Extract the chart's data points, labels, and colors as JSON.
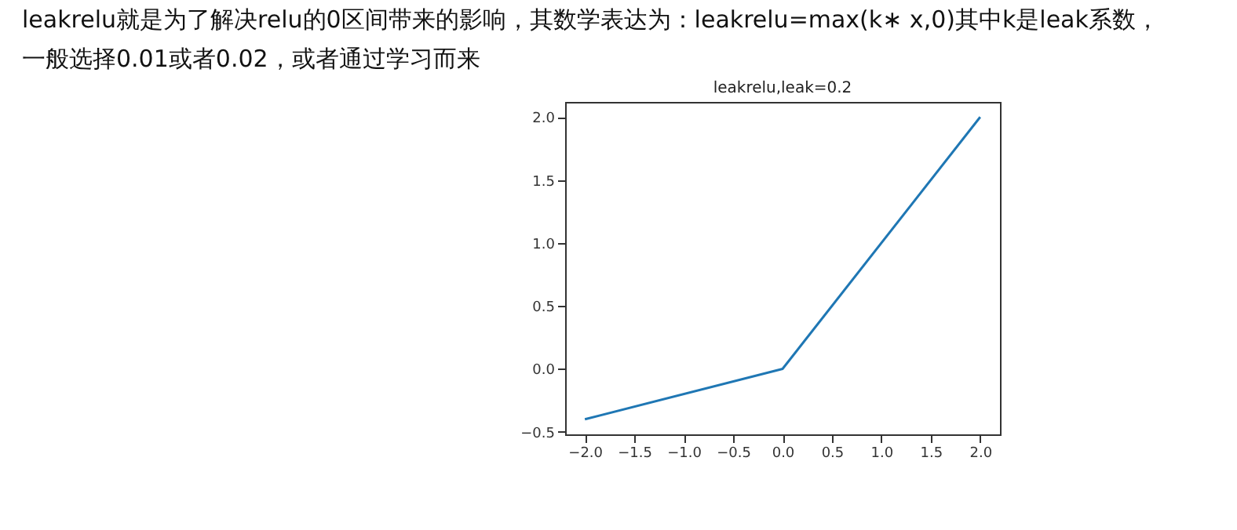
{
  "chart_data": {
    "type": "line",
    "title": "leakrelu,leak=0.2",
    "annotations": [
      "leakrelu就是为了解决relu的0区间带来的影响，其数学表达为：leakrelu=max(k∗ x,0)其中k是leak系数，",
      "一般选择0.01或者0.02，或者通过学习而来"
    ],
    "x": [
      -2.0,
      0.0,
      2.0
    ],
    "series": [
      {
        "color": "#1f77b4",
        "values": [
          -0.4,
          0.0,
          2.0
        ]
      }
    ],
    "xlim": [
      -2.2,
      2.2
    ],
    "xticks": [
      {
        "value": -2.0,
        "label": "−2.0"
      },
      {
        "value": -1.5,
        "label": "−1.5"
      },
      {
        "value": -1.0,
        "label": "−1.0"
      },
      {
        "value": -0.5,
        "label": "−0.5"
      },
      {
        "value": 0.0,
        "label": "0.0"
      },
      {
        "value": 0.5,
        "label": "0.5"
      },
      {
        "value": 1.0,
        "label": "1.0"
      },
      {
        "value": 1.5,
        "label": "1.5"
      },
      {
        "value": 2.0,
        "label": "2.0"
      }
    ],
    "ylim": [
      -0.52,
      2.12
    ],
    "yticks": [
      {
        "value": -0.5,
        "label": "−0.5"
      },
      {
        "value": 0.0,
        "label": "0.0"
      },
      {
        "value": 0.5,
        "label": "0.5"
      },
      {
        "value": 1.0,
        "label": "1.0"
      },
      {
        "value": 1.5,
        "label": "1.5"
      },
      {
        "value": 2.0,
        "label": "2.0"
      }
    ],
    "grid": false,
    "marker": "none",
    "line_style": "solid"
  }
}
